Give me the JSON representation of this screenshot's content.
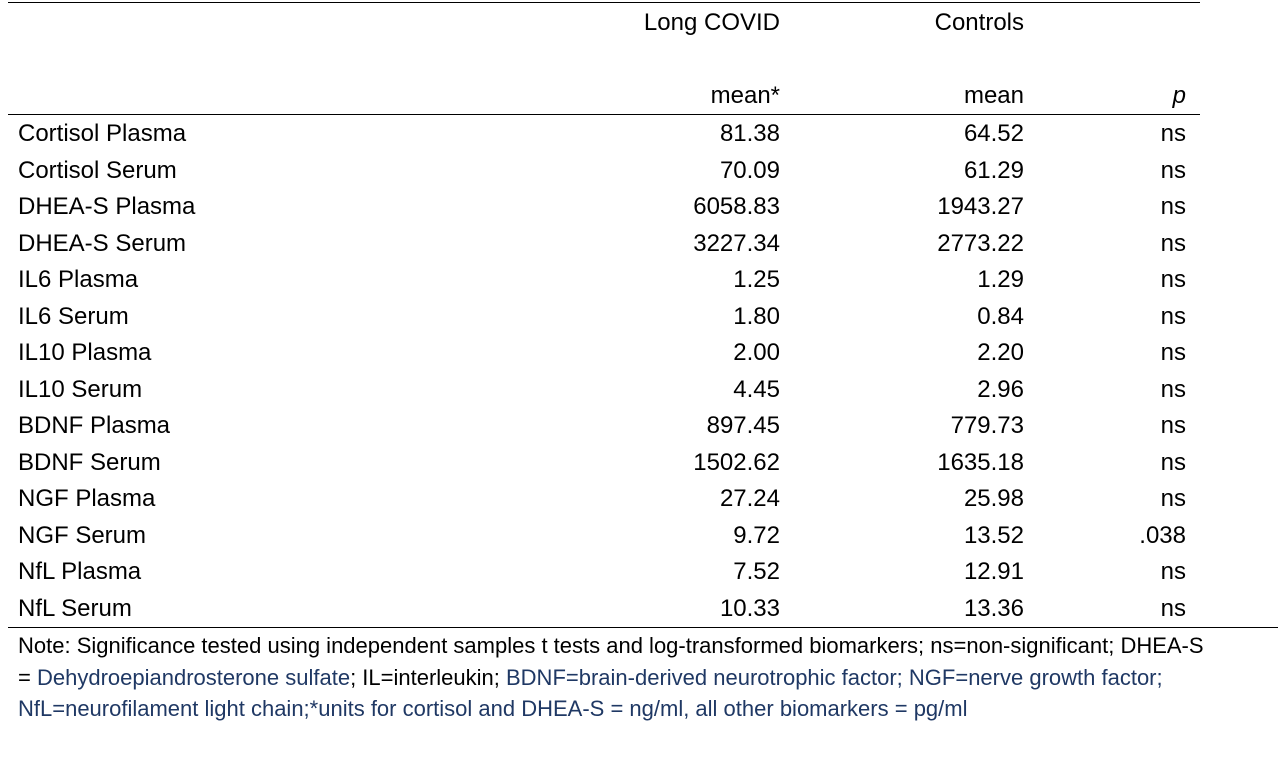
{
  "header": {
    "group1": "Long COVID",
    "group2": "Controls",
    "group1_stat": "mean*",
    "group2_stat": "mean",
    "p_label": "p"
  },
  "rows": [
    {
      "name": "Cortisol Plasma",
      "long": "81.38",
      "ctrl": "64.52",
      "p": "ns"
    },
    {
      "name": "Cortisol Serum",
      "long": "70.09",
      "ctrl": "61.29",
      "p": "ns"
    },
    {
      "name": "DHEA-S Plasma",
      "long": "6058.83",
      "ctrl": "1943.27",
      "p": "ns"
    },
    {
      "name": "DHEA-S Serum",
      "long": "3227.34",
      "ctrl": "2773.22",
      "p": "ns"
    },
    {
      "name": "IL6 Plasma",
      "long": "1.25",
      "ctrl": "1.29",
      "p": "ns"
    },
    {
      "name": "IL6 Serum",
      "long": "1.80",
      "ctrl": "0.84",
      "p": "ns"
    },
    {
      "name": "IL10 Plasma",
      "long": "2.00",
      "ctrl": "2.20",
      "p": "ns"
    },
    {
      "name": "IL10 Serum",
      "long": "4.45",
      "ctrl": "2.96",
      "p": "ns"
    },
    {
      "name": "BDNF Plasma",
      "long": "897.45",
      "ctrl": "779.73",
      "p": "ns"
    },
    {
      "name": "BDNF Serum",
      "long": "1502.62",
      "ctrl": "1635.18",
      "p": "ns"
    },
    {
      "name": "NGF Plasma",
      "long": "27.24",
      "ctrl": "25.98",
      "p": "ns"
    },
    {
      "name": "NGF Serum",
      "long": "9.72",
      "ctrl": "13.52",
      "p": ".038"
    },
    {
      "name": "NfL Plasma",
      "long": "7.52",
      "ctrl": "12.91",
      "p": "ns"
    },
    {
      "name": "NfL Serum",
      "long": "10.33",
      "ctrl": "13.36",
      "p": "ns"
    }
  ],
  "note": {
    "part1": "Note: Significance tested using independent samples t tests and log-transformed biomarkers; ns=non-significant; DHEA-S = ",
    "part2": "Dehydroepiandrosterone sulfate",
    "part3": "; IL=interleukin; ",
    "part4": "BDNF=brain-derived neurotrophic factor; NGF=nerve growth factor; NfL=neurofilament light chain;*units for cortisol and DHEA-S = ng/ml, all other biomarkers = pg/ml"
  },
  "colors": {
    "note_accent": "#1f3864",
    "text": "#000000",
    "rules": "#000000"
  }
}
